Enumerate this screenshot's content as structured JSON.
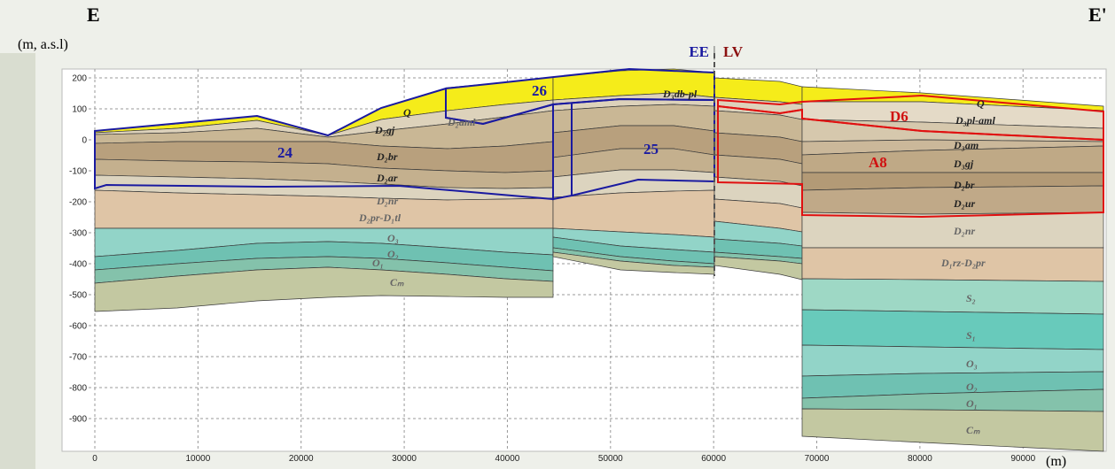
{
  "header": {
    "left": "E",
    "right": "E'",
    "y_unit": "(m, a.s.l)",
    "x_unit": "(m)",
    "boundary_left": "EE",
    "boundary_sep": "|",
    "boundary_right": "LV"
  },
  "axes": {
    "xlim": [
      0,
      97800
    ],
    "xticks": [
      0,
      10000,
      20000,
      30000,
      40000,
      50000,
      60000,
      70000,
      80000,
      90000
    ],
    "ylim": [
      -1000,
      230
    ],
    "yticks": [
      200,
      100,
      0,
      -100,
      -200,
      -300,
      -400,
      -500,
      -600,
      -700,
      -800,
      -900
    ]
  },
  "regions": [
    "24",
    "25",
    "26",
    "D6",
    "A8"
  ],
  "layers_left": [
    "Q",
    "D₂gj",
    "D₂aml",
    "D₂br",
    "D₂ar",
    "D₂nr",
    "D₂pr-D₁tl",
    "O₃",
    "O₂",
    "O₁",
    "Cₘ",
    "D₃db-pl"
  ],
  "layers_right": [
    "Q",
    "D₃pl-aml",
    "D₃am",
    "D₃gj",
    "D₂br",
    "D₂ur",
    "D₂nr",
    "D₁rz-D₂pr",
    "S₂",
    "S₁",
    "O₃",
    "O₂",
    "O₁",
    "Cₘ"
  ]
}
